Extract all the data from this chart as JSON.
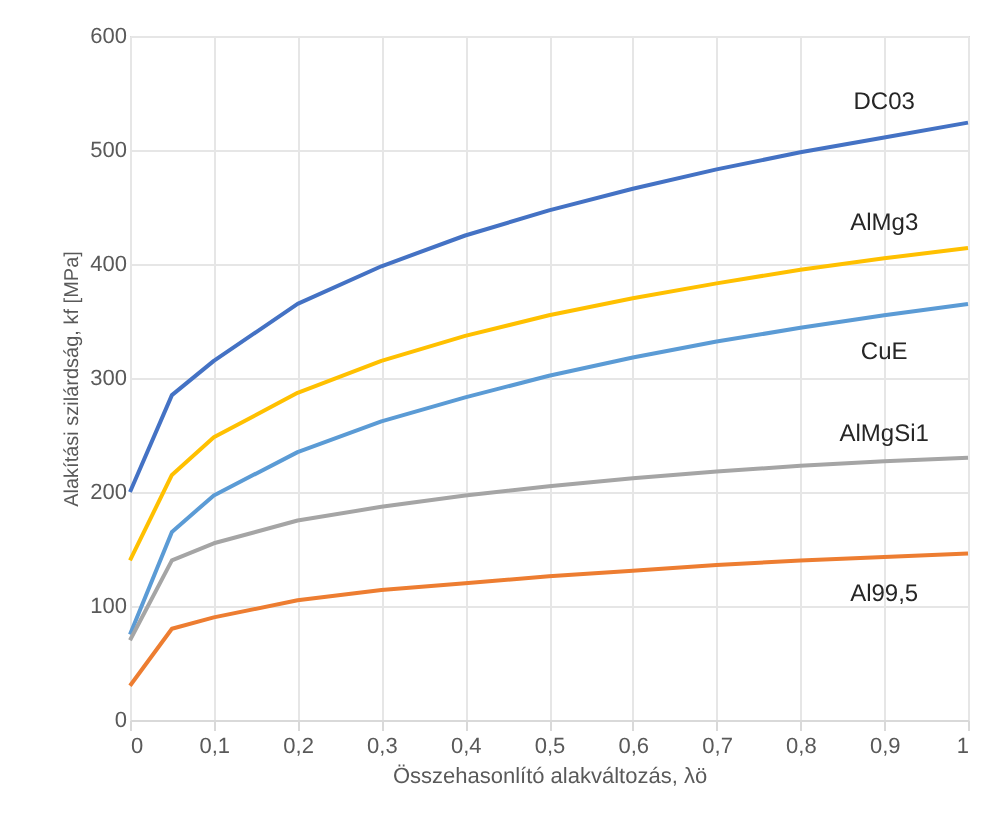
{
  "chart_data": {
    "type": "line",
    "xlabel": "Összehasonlító alakváltozás, λö",
    "ylabel": "Alakítási szilárdság, kf [MPa]",
    "x": [
      0,
      0.05,
      0.1,
      0.2,
      0.3,
      0.4,
      0.5,
      0.6,
      0.7,
      0.8,
      0.9,
      1
    ],
    "series": [
      {
        "name": "DC03",
        "color": "#4472c4",
        "values": [
          200,
          285,
          315,
          365,
          398,
          425,
          447,
          466,
          483,
          498,
          511,
          524
        ]
      },
      {
        "name": "AlMg3",
        "color": "#ffc000",
        "values": [
          140,
          215,
          248,
          287,
          315,
          337,
          355,
          370,
          383,
          395,
          405,
          414
        ]
      },
      {
        "name": "CuE",
        "color": "#5b9bd5",
        "values": [
          75,
          165,
          197,
          235,
          262,
          283,
          302,
          318,
          332,
          344,
          355,
          365
        ]
      },
      {
        "name": "AlMgSi1",
        "color": "#a5a5a5",
        "values": [
          70,
          140,
          155,
          175,
          187,
          197,
          205,
          212,
          218,
          223,
          227,
          230
        ]
      },
      {
        "name": "Al99,5",
        "color": "#ed7d31",
        "values": [
          30,
          80,
          90,
          105,
          114,
          120,
          126,
          131,
          136,
          140,
          143,
          146
        ]
      }
    ],
    "xlim": [
      0,
      1
    ],
    "xticks": [
      0,
      {
        "value": 0.1,
        "label": "0,1"
      },
      {
        "value": 0.2,
        "label": "0,2"
      },
      {
        "value": 0.3,
        "label": "0,3"
      },
      {
        "value": 0.4,
        "label": "0,4"
      },
      {
        "value": 0.5,
        "label": "0,5"
      },
      {
        "value": 0.6,
        "label": "0,6"
      },
      {
        "value": 0.7,
        "label": "0,7"
      },
      {
        "value": 0.8,
        "label": "0,8"
      },
      {
        "value": 0.9,
        "label": "0,9"
      },
      1
    ],
    "ylim": [
      0,
      600
    ],
    "yticks": [
      0,
      100,
      200,
      300,
      400,
      500,
      600
    ],
    "grid": true,
    "marker": "none",
    "line_style": "solid"
  }
}
